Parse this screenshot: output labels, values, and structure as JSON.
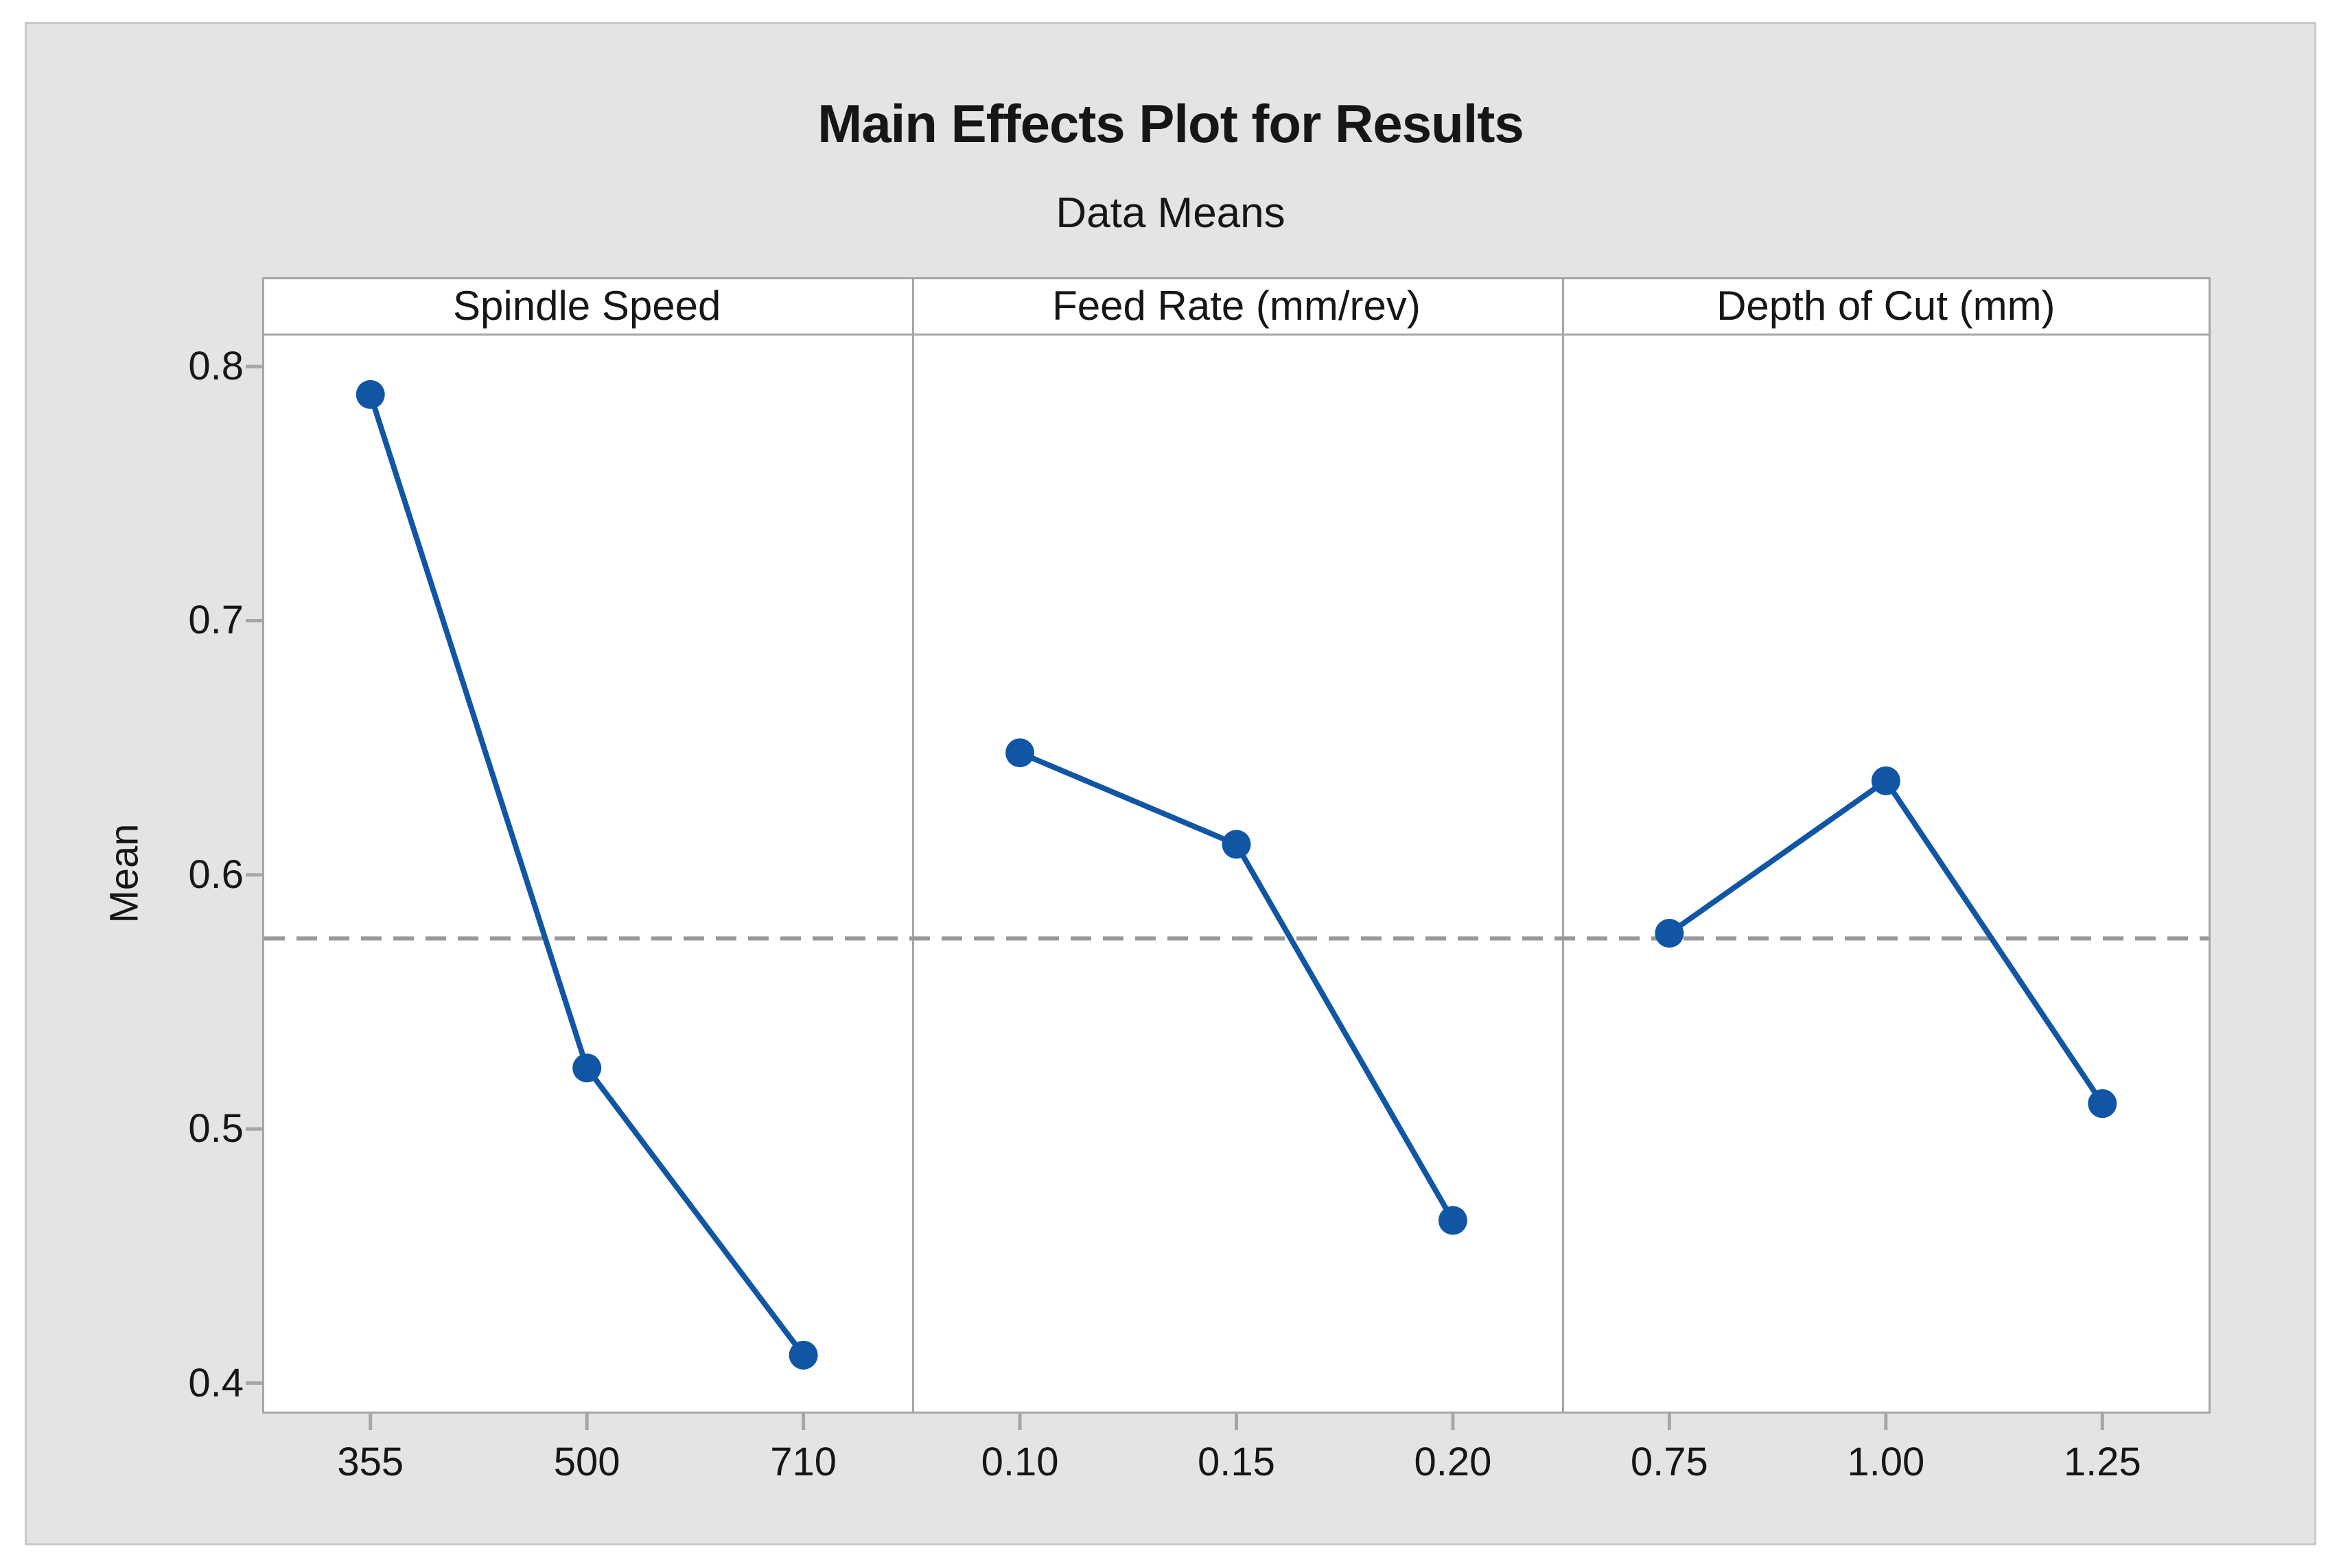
{
  "chart_data": {
    "type": "line",
    "title": "Main Effects Plot for Results",
    "subtitle": "Data Means",
    "ylabel": "Mean",
    "ylim": [
      0.388,
      0.813
    ],
    "yticks": [
      0.8,
      0.7,
      0.6,
      0.5,
      0.4
    ],
    "grand_mean": 0.575,
    "grid": false,
    "panels": [
      {
        "label": "Spindle Speed",
        "categories": [
          "355",
          "500",
          "710"
        ],
        "values": [
          0.789,
          0.524,
          0.411
        ]
      },
      {
        "label": "Feed Rate (mm/rev)",
        "categories": [
          "0.10",
          "0.15",
          "0.20"
        ],
        "values": [
          0.648,
          0.612,
          0.464
        ]
      },
      {
        "label": "Depth of Cut (mm)",
        "categories": [
          "0.75",
          "1.00",
          "1.25"
        ],
        "values": [
          0.577,
          0.637,
          0.51
        ]
      }
    ],
    "series_color": "#1156A4",
    "mean_line_color": "#999999",
    "mean_line_style": "dashed"
  }
}
